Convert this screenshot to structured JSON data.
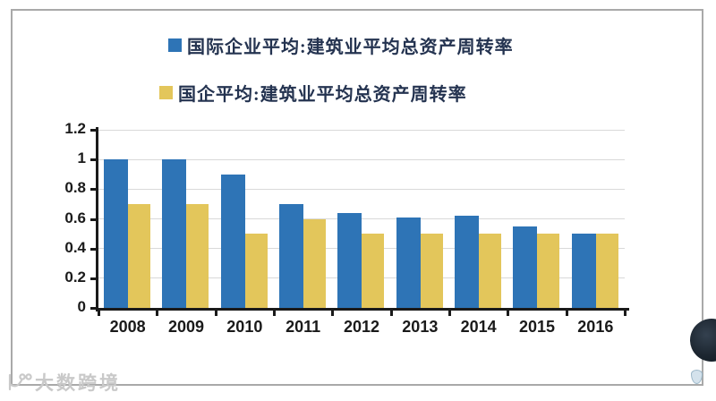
{
  "legend": {
    "items": [
      {
        "label": "国际企业平均:建筑业平均总资产周转率",
        "color": "#2e74b6"
      },
      {
        "label": "国企平均:建筑业平均总资产周转率",
        "color": "#e3c65b"
      }
    ]
  },
  "chart_data": {
    "type": "bar",
    "categories": [
      "2008",
      "2009",
      "2010",
      "2011",
      "2012",
      "2013",
      "2014",
      "2015",
      "2016"
    ],
    "series": [
      {
        "name": "国际企业平均:建筑业平均总资产周转率",
        "color": "#2e74b6",
        "values": [
          1.0,
          1.0,
          0.9,
          0.7,
          0.64,
          0.61,
          0.62,
          0.55,
          0.5
        ]
      },
      {
        "name": "国企平均:建筑业平均总资产周转率",
        "color": "#e3c65b",
        "values": [
          0.7,
          0.7,
          0.5,
          0.6,
          0.5,
          0.5,
          0.5,
          0.5,
          0.5
        ]
      }
    ],
    "title": "",
    "xlabel": "",
    "ylabel": "",
    "ylim": [
      0,
      1.2
    ],
    "yticks": [
      0,
      0.2,
      0.4,
      0.6,
      0.8,
      1,
      1.2
    ],
    "grid": true,
    "legend_position": "top"
  },
  "watermark": {
    "text": "大数跨境"
  },
  "colors": {
    "grid": "#d9d9d9",
    "axis": "#1a1a1a",
    "frame_border": "#a9a9a9",
    "legend_text": "#243350",
    "watermark_text": "#c9c9c9",
    "dark_circle": "#1c2630"
  }
}
